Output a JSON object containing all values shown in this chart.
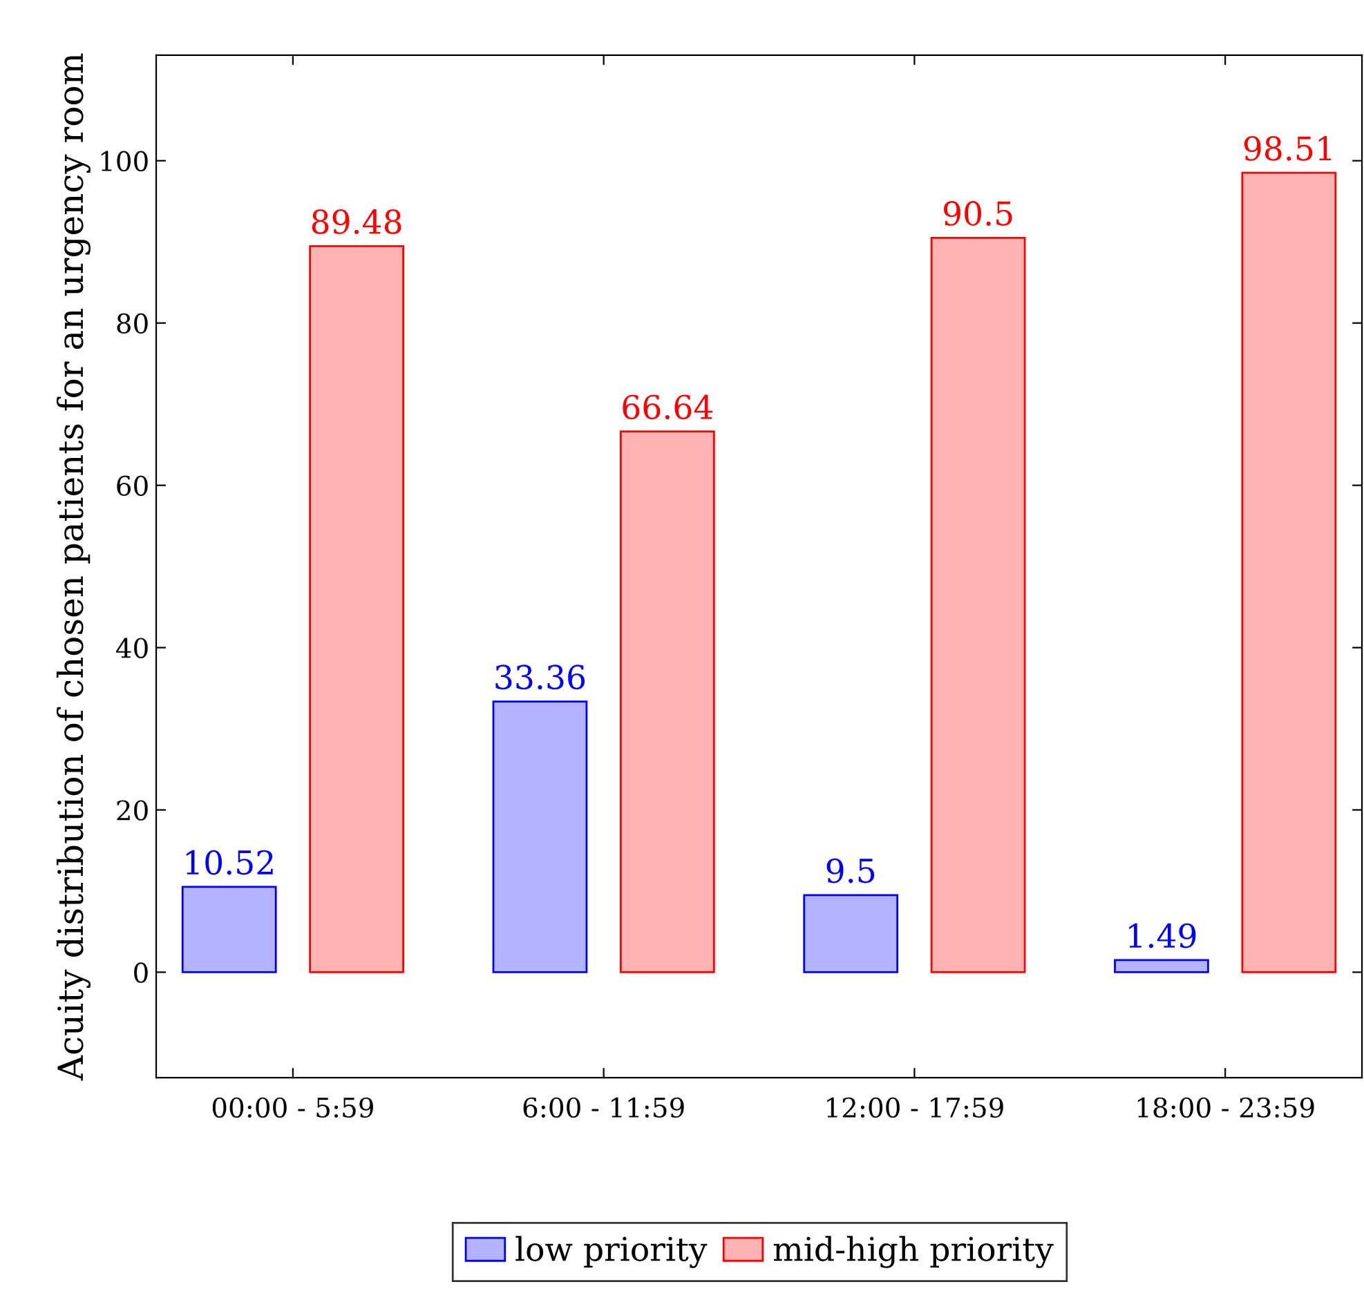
{
  "chart_data": {
    "type": "bar",
    "ylabel": "Acuity distribution of chosen patients for an urgency room",
    "categories": [
      "00:00 - 5:59",
      "6:00 - 11:59",
      "12:00 - 17:59",
      "18:00 - 23:59"
    ],
    "series": [
      {
        "name": "low priority",
        "color": "#b3b3ff",
        "values": [
          10.52,
          33.36,
          9.5,
          1.49
        ]
      },
      {
        "name": "mid-high priority",
        "color": "#ffb3b3",
        "values": [
          89.48,
          66.64,
          90.5,
          98.51
        ]
      }
    ],
    "ylim": [
      -13,
      113
    ],
    "yticks": [
      0,
      20,
      40,
      60,
      80,
      100
    ],
    "data_labels": true,
    "grid": false,
    "legend": "bottom"
  }
}
